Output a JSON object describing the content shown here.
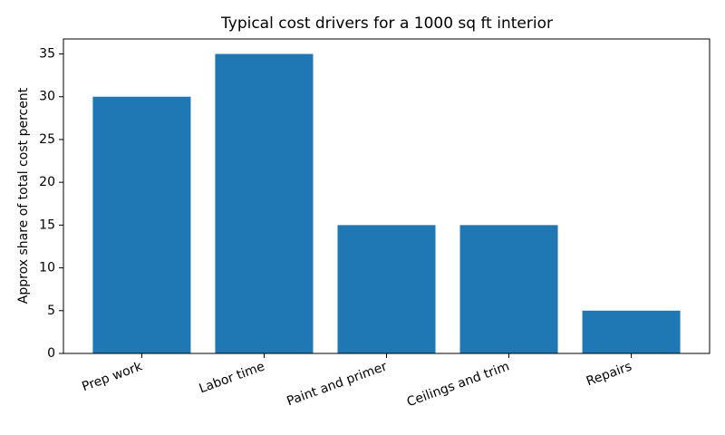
{
  "chart_data": {
    "type": "bar",
    "title": "Typical cost drivers for a 1000 sq ft interior",
    "ylabel": "Approx share of total cost percent",
    "categories": [
      "Prep work",
      "Labor time",
      "Paint and primer",
      "Ceilings and trim",
      "Repairs"
    ],
    "values": [
      30,
      35,
      15,
      15,
      5
    ],
    "color": "#1f77b4",
    "ylim": [
      0,
      36.75
    ],
    "yticks": [
      0,
      5,
      10,
      15,
      20,
      25,
      30,
      35
    ],
    "grid": false
  }
}
